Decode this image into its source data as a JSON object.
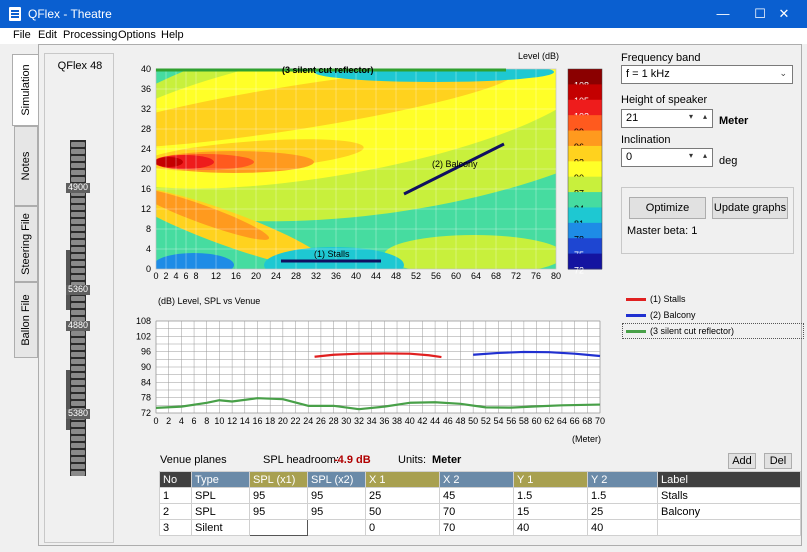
{
  "window": {
    "title": "QFlex - Theatre",
    "minimize": "—",
    "maximize": "☐",
    "close": "✕"
  },
  "menu": [
    "File",
    "Edit",
    "Processing",
    "Options",
    "Help"
  ],
  "tabs": [
    "Simulation",
    "Notes",
    "Steering File",
    "Ballon File"
  ],
  "speaker_panel": {
    "title": "QFlex 48",
    "marks": [
      "4900",
      "5360",
      "4880",
      "5380"
    ]
  },
  "heatmap": {
    "legend_title": "Level  (dB)",
    "colorbar": [
      "108",
      "105",
      "102",
      "99",
      "96",
      "93",
      "90",
      "87",
      "84",
      "81",
      "78",
      "75",
      "72"
    ],
    "colorbar_colors": [
      "#8b0000",
      "#c40000",
      "#ee1c1c",
      "#ff5a1e",
      "#ff9a1e",
      "#ffd21e",
      "#ffff28",
      "#c8f03c",
      "#46dca0",
      "#1ec8d2",
      "#1e8ce6",
      "#1e46d2",
      "#1414a0"
    ],
    "x_ticks": [
      "0",
      "2",
      "4",
      "6",
      "8",
      "12",
      "16",
      "20",
      "24",
      "28",
      "32",
      "36",
      "40",
      "44",
      "48",
      "52",
      "56",
      "60",
      "64",
      "68",
      "72",
      "76",
      "80"
    ],
    "y_ticks": [
      "40",
      "36",
      "32",
      "28",
      "24",
      "20",
      "16",
      "12",
      "8",
      "4",
      "0"
    ],
    "labels": {
      "reflector": "(3 silent cut reflector)",
      "balcony": "(2) Balcony",
      "stalls": "(1) Stalls"
    }
  },
  "lineplot": {
    "title": "(dB)  Level, SPL vs Venue",
    "y_ticks": [
      "108",
      "102",
      "96",
      "90",
      "84",
      "78",
      "72"
    ],
    "x_ticks": [
      "0",
      "2",
      "4",
      "6",
      "8",
      "10",
      "12",
      "14",
      "16",
      "18",
      "20",
      "22",
      "24",
      "26",
      "28",
      "30",
      "32",
      "34",
      "36",
      "38",
      "40",
      "42",
      "44",
      "46",
      "48",
      "50",
      "52",
      "54",
      "56",
      "58",
      "60",
      "62",
      "64",
      "66",
      "68",
      "70"
    ],
    "x_unit": "(Meter)",
    "legend": [
      {
        "label": "(1) Stalls",
        "color": "#e02020"
      },
      {
        "label": "(2) Balcony",
        "color": "#2030d0"
      },
      {
        "label": "(3 silent cut reflector)",
        "color": "#48a048"
      }
    ]
  },
  "chart_data": {
    "type": "line",
    "title": "Level, SPL vs Venue",
    "ylabel": "(dB)",
    "xlabel": "(Meter)",
    "xlim": [
      0,
      70
    ],
    "ylim": [
      72,
      108
    ],
    "series": [
      {
        "name": "(1) Stalls",
        "x": [
          25,
          28,
          32,
          36,
          40,
          43,
          45
        ],
        "values": [
          94,
          94.8,
          95.2,
          95.3,
          95.2,
          94.6,
          93.9
        ]
      },
      {
        "name": "(2) Balcony",
        "x": [
          50,
          54,
          58,
          62,
          66,
          70
        ],
        "values": [
          94.8,
          95.5,
          95.9,
          95.8,
          95.2,
          94.3
        ]
      },
      {
        "name": "(3 silent cut reflector)",
        "x": [
          0,
          4,
          8,
          10,
          12,
          16,
          20,
          24,
          28,
          32,
          36,
          40,
          44,
          48,
          52,
          56,
          60,
          64,
          70
        ],
        "values": [
          74,
          74.5,
          76,
          77,
          76.5,
          77.8,
          77.4,
          74.8,
          74.8,
          73.5,
          74.5,
          76,
          76.2,
          75.6,
          74.2,
          74.1,
          74.6,
          75,
          75.3
        ]
      }
    ]
  },
  "controls": {
    "freq_label": "Frequency band",
    "freq_value": "f = 1 kHz",
    "height_label": "Height of speaker",
    "height_value": "21",
    "height_unit": "Meter",
    "incl_label": "Inclination",
    "incl_value": "0",
    "incl_unit": "deg",
    "optimize": "Optimize",
    "update_graphs": "Update graphs",
    "master_beta": "Master beta: 1"
  },
  "venue": {
    "title": "Venue planes",
    "headroom_label": "SPL headroom:",
    "headroom_value": "-4.9 dB",
    "units_label": "Units:",
    "units_value": "Meter",
    "add": "Add",
    "del": "Del",
    "columns": [
      "No",
      "Type",
      "SPL (x1)",
      "SPL (x2)",
      "X 1",
      "X 2",
      "Y 1",
      "Y 2",
      "Label"
    ],
    "column_colors": [
      "#404040",
      "#6a8aa8",
      "#a8a050",
      "#6a8aa8",
      "#a8a050",
      "#6a8aa8",
      "#a8a050",
      "#6a8aa8",
      "#404040"
    ],
    "rows": [
      [
        "1",
        "SPL",
        "95",
        "95",
        "25",
        "45",
        "1.5",
        "1.5",
        "Stalls"
      ],
      [
        "2",
        "SPL",
        "95",
        "95",
        "50",
        "70",
        "15",
        "25",
        "Balcony"
      ],
      [
        "3",
        "Silent",
        "",
        "",
        "0",
        "70",
        "40",
        "40",
        ""
      ]
    ]
  }
}
